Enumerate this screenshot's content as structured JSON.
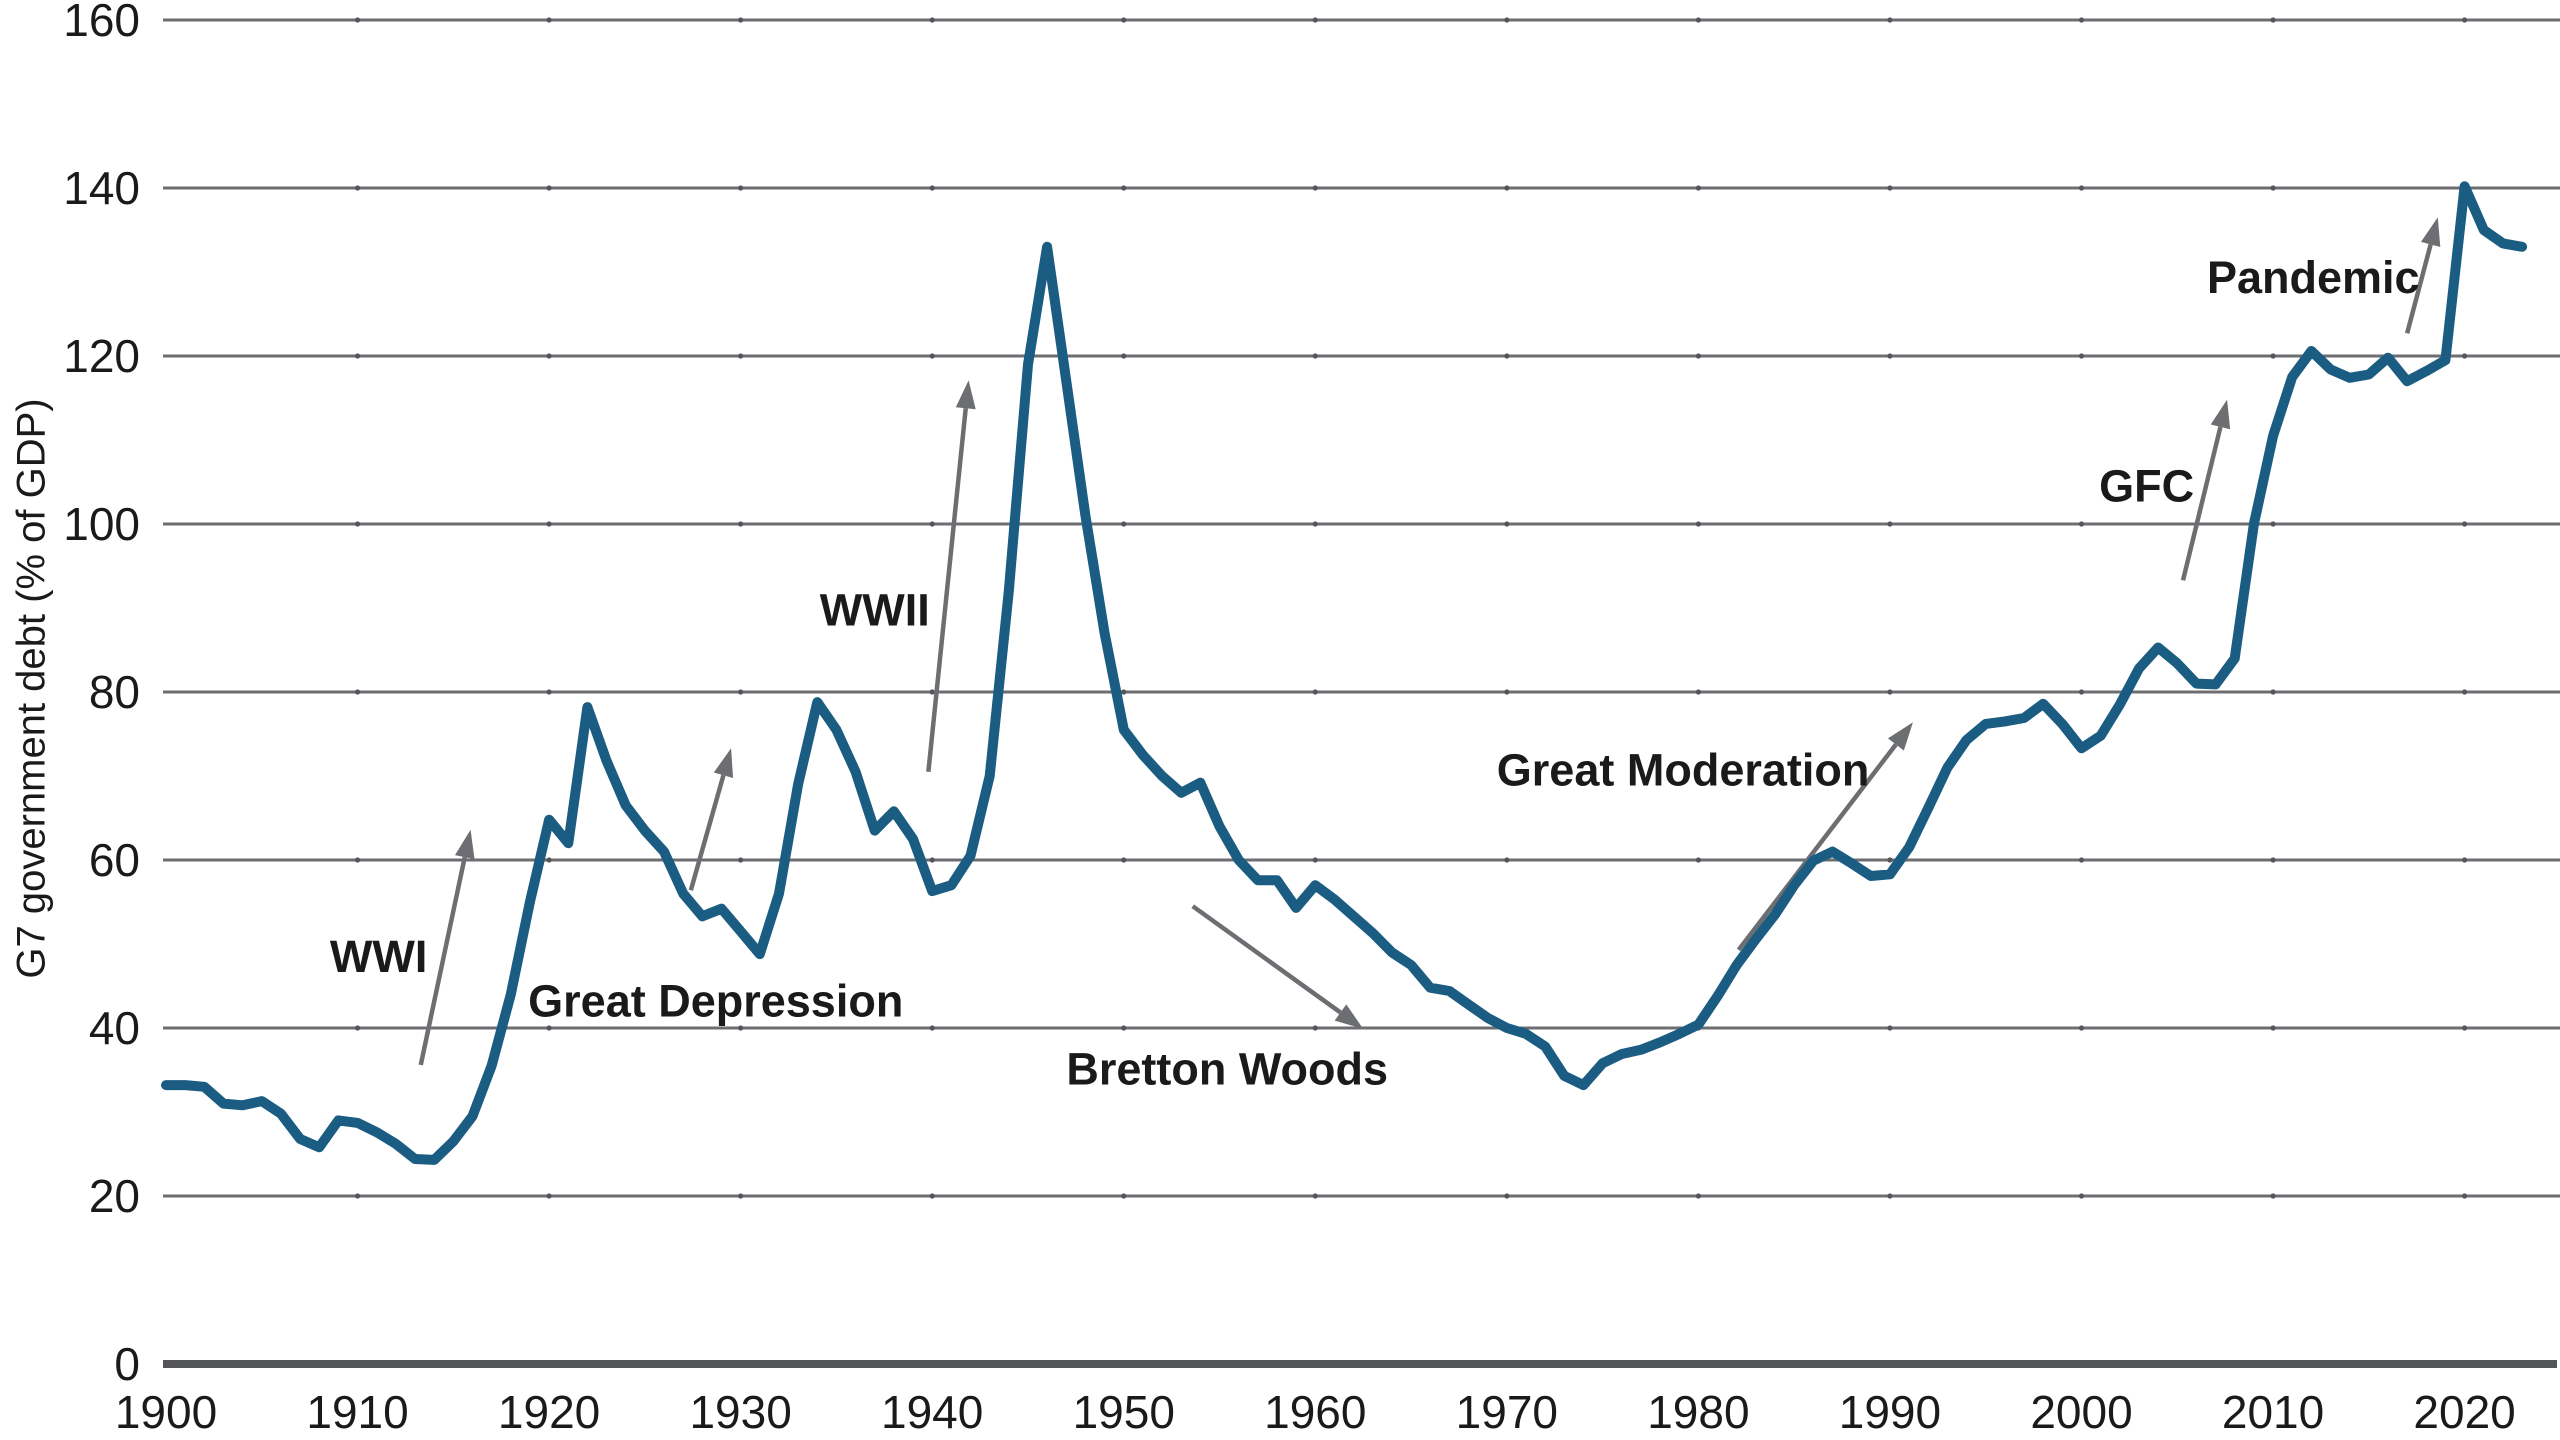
{
  "figure": {
    "y_axis_title": "G7 government debt (% of GDP)"
  },
  "style": {
    "line_color": "#1b5c82",
    "grid_color": "#6d6e71",
    "axis_color": "#55565a",
    "text_color": "#1a1a1a",
    "arrow_color": "#6d6e71"
  },
  "chart_data": {
    "type": "line",
    "title": "",
    "xlabel": "",
    "ylabel": "G7 government debt (% of GDP)",
    "x_start": 1900,
    "x_step": 1,
    "xlim": [
      1900,
      2024.8
    ],
    "ylim": [
      0,
      160
    ],
    "grid": "horizontal",
    "legend": "none",
    "x_ticks": [
      1900,
      1910,
      1920,
      1930,
      1940,
      1950,
      1960,
      1970,
      1980,
      1990,
      2000,
      2010,
      2020
    ],
    "y_ticks": [
      0,
      20,
      40,
      60,
      80,
      100,
      120,
      140,
      160
    ],
    "series": [
      {
        "name": "G7 government debt (% of GDP)",
        "values": [
          33.2,
          33.2,
          33.0,
          31.0,
          30.8,
          31.3,
          29.8,
          26.8,
          25.8,
          29.0,
          28.7,
          27.6,
          26.2,
          24.4,
          24.3,
          26.5,
          29.5,
          35.5,
          44.0,
          55.0,
          64.8,
          62.0,
          78.2,
          71.8,
          66.5,
          63.5,
          61.0,
          56.0,
          53.3,
          54.2,
          51.5,
          48.8,
          56.0,
          69.0,
          78.8,
          75.5,
          70.5,
          63.5,
          65.8,
          62.5,
          56.3,
          57.0,
          60.5,
          70.0,
          92.0,
          119.0,
          133.0,
          117.0,
          101.0,
          87.0,
          75.5,
          72.5,
          70.0,
          68.0,
          69.2,
          64.0,
          60.0,
          57.6,
          57.6,
          54.3,
          57.0,
          55.3,
          53.3,
          51.3,
          49.0,
          47.5,
          44.8,
          44.4,
          42.8,
          41.2,
          40.0,
          39.3,
          37.8,
          34.3,
          33.2,
          35.8,
          36.9,
          37.4,
          38.3,
          39.3,
          40.4,
          43.8,
          47.5,
          50.6,
          53.5,
          57.0,
          59.9,
          61.0,
          59.6,
          58.1,
          58.3,
          61.5,
          66.2,
          71.0,
          74.3,
          76.2,
          76.5,
          76.9,
          78.6,
          76.2,
          73.3,
          74.8,
          78.5,
          82.8,
          85.3,
          83.4,
          81.0,
          80.9,
          84.0,
          100.0,
          110.5,
          117.5,
          120.6,
          118.4,
          117.4,
          117.8,
          119.8,
          117.0,
          118.2,
          119.5,
          140.2,
          135.0,
          133.4,
          133.0
        ]
      }
    ],
    "annotations": [
      {
        "label": "WWI",
        "year": 1911.1,
        "value": 48.6,
        "arrow": {
          "x1": 1913.3,
          "v1": 35.6,
          "x2": 1915.9,
          "v2": 63.6
        }
      },
      {
        "label": "Great Depression",
        "year": 1928.7,
        "value": 43.3,
        "arrow": {
          "x1": 1927.4,
          "v1": 56.4,
          "x2": 1929.5,
          "v2": 73.3
        }
      },
      {
        "label": "WWII",
        "year": 1937.0,
        "value": 89.8,
        "arrow": {
          "x1": 1939.8,
          "v1": 70.5,
          "x2": 1941.9,
          "v2": 117.1
        }
      },
      {
        "label": "Bretton Woods",
        "year": 1955.4,
        "value": 35.2,
        "arrow": {
          "x1": 1953.6,
          "v1": 54.5,
          "x2": 1962.5,
          "v2": 39.9
        }
      },
      {
        "label": "Great Moderation",
        "year": 1979.2,
        "value": 70.8,
        "arrow": {
          "x1": 1982.1,
          "v1": 49.3,
          "x2": 1991.2,
          "v2": 76.4
        }
      },
      {
        "label": "GFC",
        "year": 2003.4,
        "value": 104.6,
        "arrow": {
          "x1": 2005.3,
          "v1": 93.3,
          "x2": 2007.6,
          "v2": 114.8
        }
      },
      {
        "label": "Pandemic",
        "year": 2012.1,
        "value": 129.4,
        "arrow": {
          "x1": 2017.0,
          "v1": 122.7,
          "x2": 2018.6,
          "v2": 136.5
        }
      }
    ]
  }
}
